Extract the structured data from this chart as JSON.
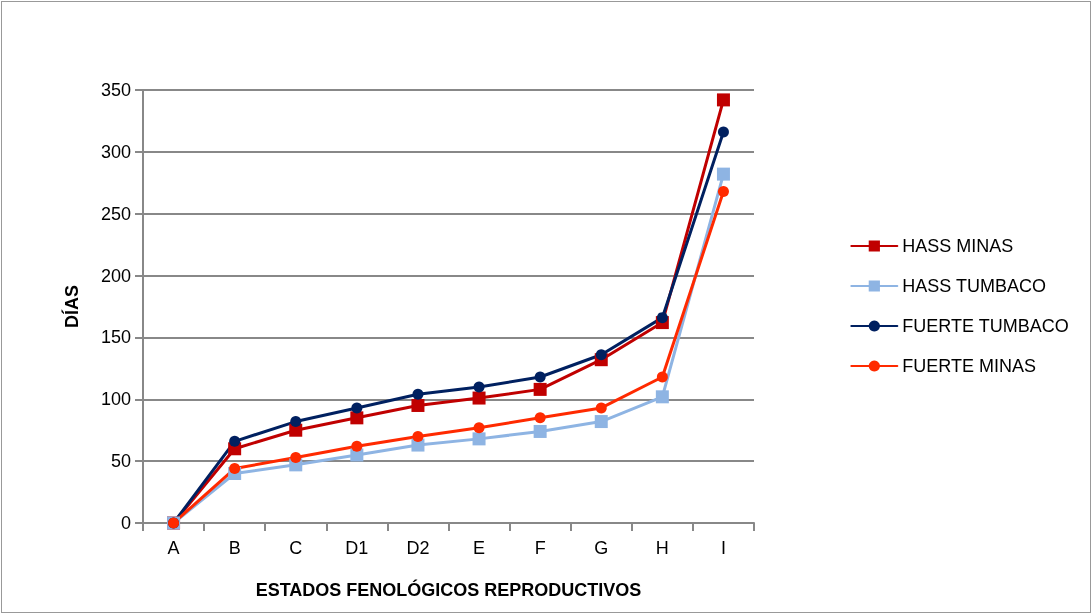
{
  "chart_data": {
    "type": "line",
    "xlabel": "ESTADOS FENOLÓGICOS REPRODUCTIVOS",
    "ylabel": "DÍAS",
    "categories": [
      "A",
      "B",
      "C",
      "D1",
      "D2",
      "E",
      "F",
      "G",
      "H",
      "I"
    ],
    "ylim": [
      0,
      350
    ],
    "yticks": [
      0,
      50,
      100,
      150,
      200,
      250,
      300,
      350
    ],
    "grid": "y",
    "legend": "right",
    "line_style": "solid",
    "series": [
      {
        "name": "HASS MINAS",
        "color": "#c00000",
        "marker": "square",
        "values": [
          0,
          60,
          75,
          85,
          95,
          101,
          108,
          132,
          162,
          342
        ]
      },
      {
        "name": "HASS TUMBACO",
        "color": "#8eb4e3",
        "marker": "square",
        "values": [
          0,
          40,
          47,
          55,
          63,
          68,
          74,
          82,
          102,
          282
        ]
      },
      {
        "name": "FUERTE TUMBACO",
        "color": "#002060",
        "marker": "circle",
        "values": [
          0,
          66,
          82,
          93,
          104,
          110,
          118,
          136,
          166,
          316
        ]
      },
      {
        "name": "FUERTE MINAS",
        "color": "#ff2a00",
        "marker": "circle",
        "values": [
          0,
          44,
          53,
          62,
          70,
          77,
          85,
          93,
          118,
          268
        ]
      }
    ]
  }
}
